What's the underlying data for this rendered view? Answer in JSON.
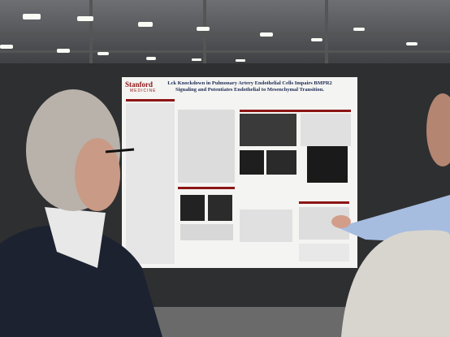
{
  "poster": {
    "logo": "Stanford",
    "logo_sub": "MEDICINE",
    "title": "Lck Knockdown in Pulmonary Artery Endothelial Cells Impairs BMPR2 Signaling and Potentiates Endothelial to Mesenchymal Transition."
  }
}
